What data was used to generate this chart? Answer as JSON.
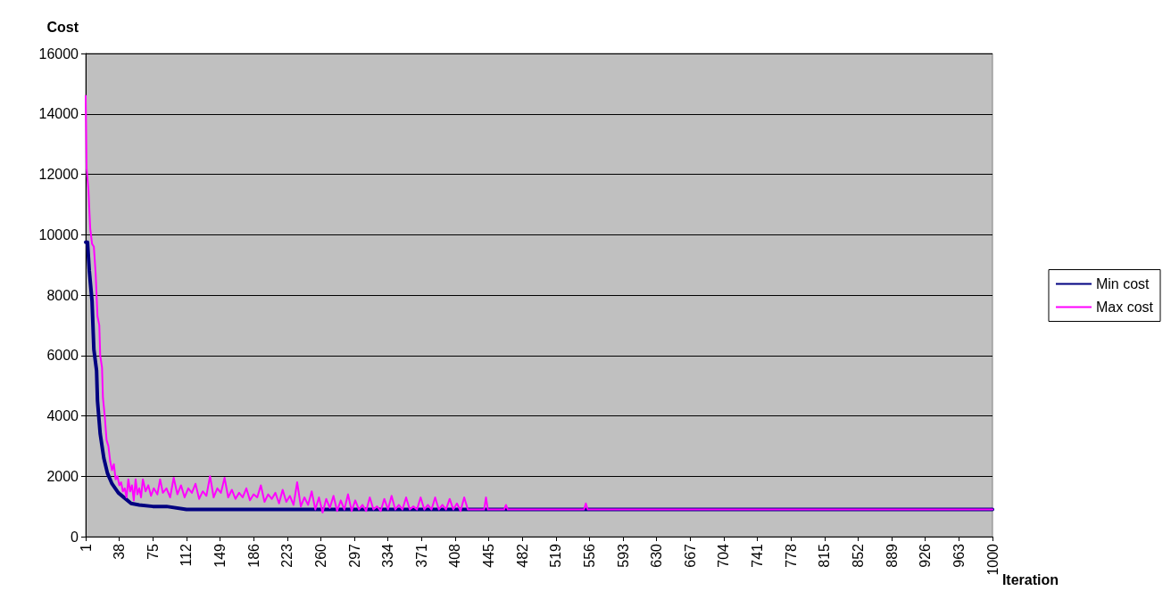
{
  "chart_data": {
    "type": "line",
    "xlabel": "Iteration",
    "ylabel": "Cost",
    "xlim": [
      1,
      1000
    ],
    "xticks": [
      1,
      38,
      75,
      112,
      149,
      186,
      223,
      260,
      297,
      334,
      371,
      408,
      445,
      482,
      519,
      556,
      593,
      630,
      667,
      704,
      741,
      778,
      815,
      852,
      889,
      926,
      963,
      1000
    ],
    "ylim": [
      0,
      16000
    ],
    "yticks": [
      0,
      2000,
      4000,
      6000,
      8000,
      10000,
      12000,
      14000,
      16000
    ],
    "grid": "y",
    "legend": "right",
    "marker": "none",
    "line_style": "solid",
    "series": [
      {
        "name": "Min cost",
        "color": "#000080",
        "x": [
          1,
          3,
          5,
          8,
          10,
          13,
          14,
          17,
          21,
          25,
          30,
          37,
          45,
          51,
          60,
          75,
          90,
          112,
          149,
          200,
          300,
          1000
        ],
        "values": [
          9750,
          9750,
          8800,
          7800,
          6200,
          5500,
          4500,
          3400,
          2600,
          2100,
          1750,
          1450,
          1250,
          1100,
          1050,
          1000,
          1000,
          900,
          900,
          900,
          900,
          900
        ]
      },
      {
        "name": "Max cost",
        "color": "#ff00ff",
        "x": [
          1,
          2,
          4,
          6,
          8,
          10,
          12,
          14,
          16,
          17,
          19,
          20,
          22,
          24,
          26,
          28,
          30,
          32,
          34,
          36,
          38,
          40,
          42,
          44,
          46,
          48,
          50,
          52,
          54,
          56,
          58,
          60,
          62,
          64,
          67,
          70,
          73,
          76,
          80,
          83,
          86,
          90,
          94,
          98,
          102,
          106,
          110,
          114,
          118,
          122,
          126,
          130,
          134,
          138,
          142,
          146,
          150,
          154,
          158,
          162,
          166,
          170,
          174,
          178,
          182,
          186,
          190,
          194,
          198,
          202,
          206,
          210,
          214,
          218,
          222,
          226,
          230,
          234,
          238,
          242,
          246,
          250,
          254,
          258,
          262,
          266,
          270,
          274,
          278,
          282,
          286,
          290,
          294,
          298,
          302,
          306,
          310,
          314,
          318,
          322,
          326,
          330,
          334,
          338,
          342,
          346,
          350,
          354,
          358,
          362,
          366,
          370,
          374,
          378,
          382,
          386,
          390,
          394,
          398,
          402,
          406,
          410,
          414,
          418,
          422,
          440,
          442,
          444,
          462,
          464,
          466,
          550,
          552,
          554,
          1000
        ],
        "values": [
          14600,
          12200,
          11500,
          10200,
          9700,
          9600,
          8700,
          7300,
          7000,
          6000,
          5600,
          4600,
          4000,
          3200,
          3000,
          2500,
          2200,
          2400,
          1900,
          2000,
          1700,
          1800,
          1500,
          1600,
          1300,
          1900,
          1500,
          1700,
          1200,
          1900,
          1400,
          1600,
          1300,
          1900,
          1500,
          1700,
          1350,
          1600,
          1400,
          1900,
          1450,
          1600,
          1300,
          1950,
          1400,
          1700,
          1300,
          1600,
          1450,
          1750,
          1250,
          1500,
          1350,
          2000,
          1300,
          1600,
          1450,
          1950,
          1300,
          1550,
          1250,
          1450,
          1300,
          1600,
          1200,
          1400,
          1300,
          1700,
          1150,
          1400,
          1250,
          1450,
          1100,
          1550,
          1150,
          1350,
          1050,
          1800,
          1000,
          1300,
          1050,
          1500,
          900,
          1300,
          800,
          1250,
          950,
          1350,
          850,
          1200,
          900,
          1400,
          850,
          1200,
          900,
          1050,
          850,
          1300,
          900,
          1000,
          850,
          1250,
          900,
          1350,
          900,
          1050,
          900,
          1300,
          900,
          1000,
          900,
          1300,
          900,
          1050,
          900,
          1300,
          900,
          1050,
          900,
          1250,
          900,
          1100,
          850,
          1300,
          900,
          900,
          1300,
          900,
          900,
          1050,
          900,
          900,
          1100,
          900,
          900
        ]
      }
    ]
  }
}
